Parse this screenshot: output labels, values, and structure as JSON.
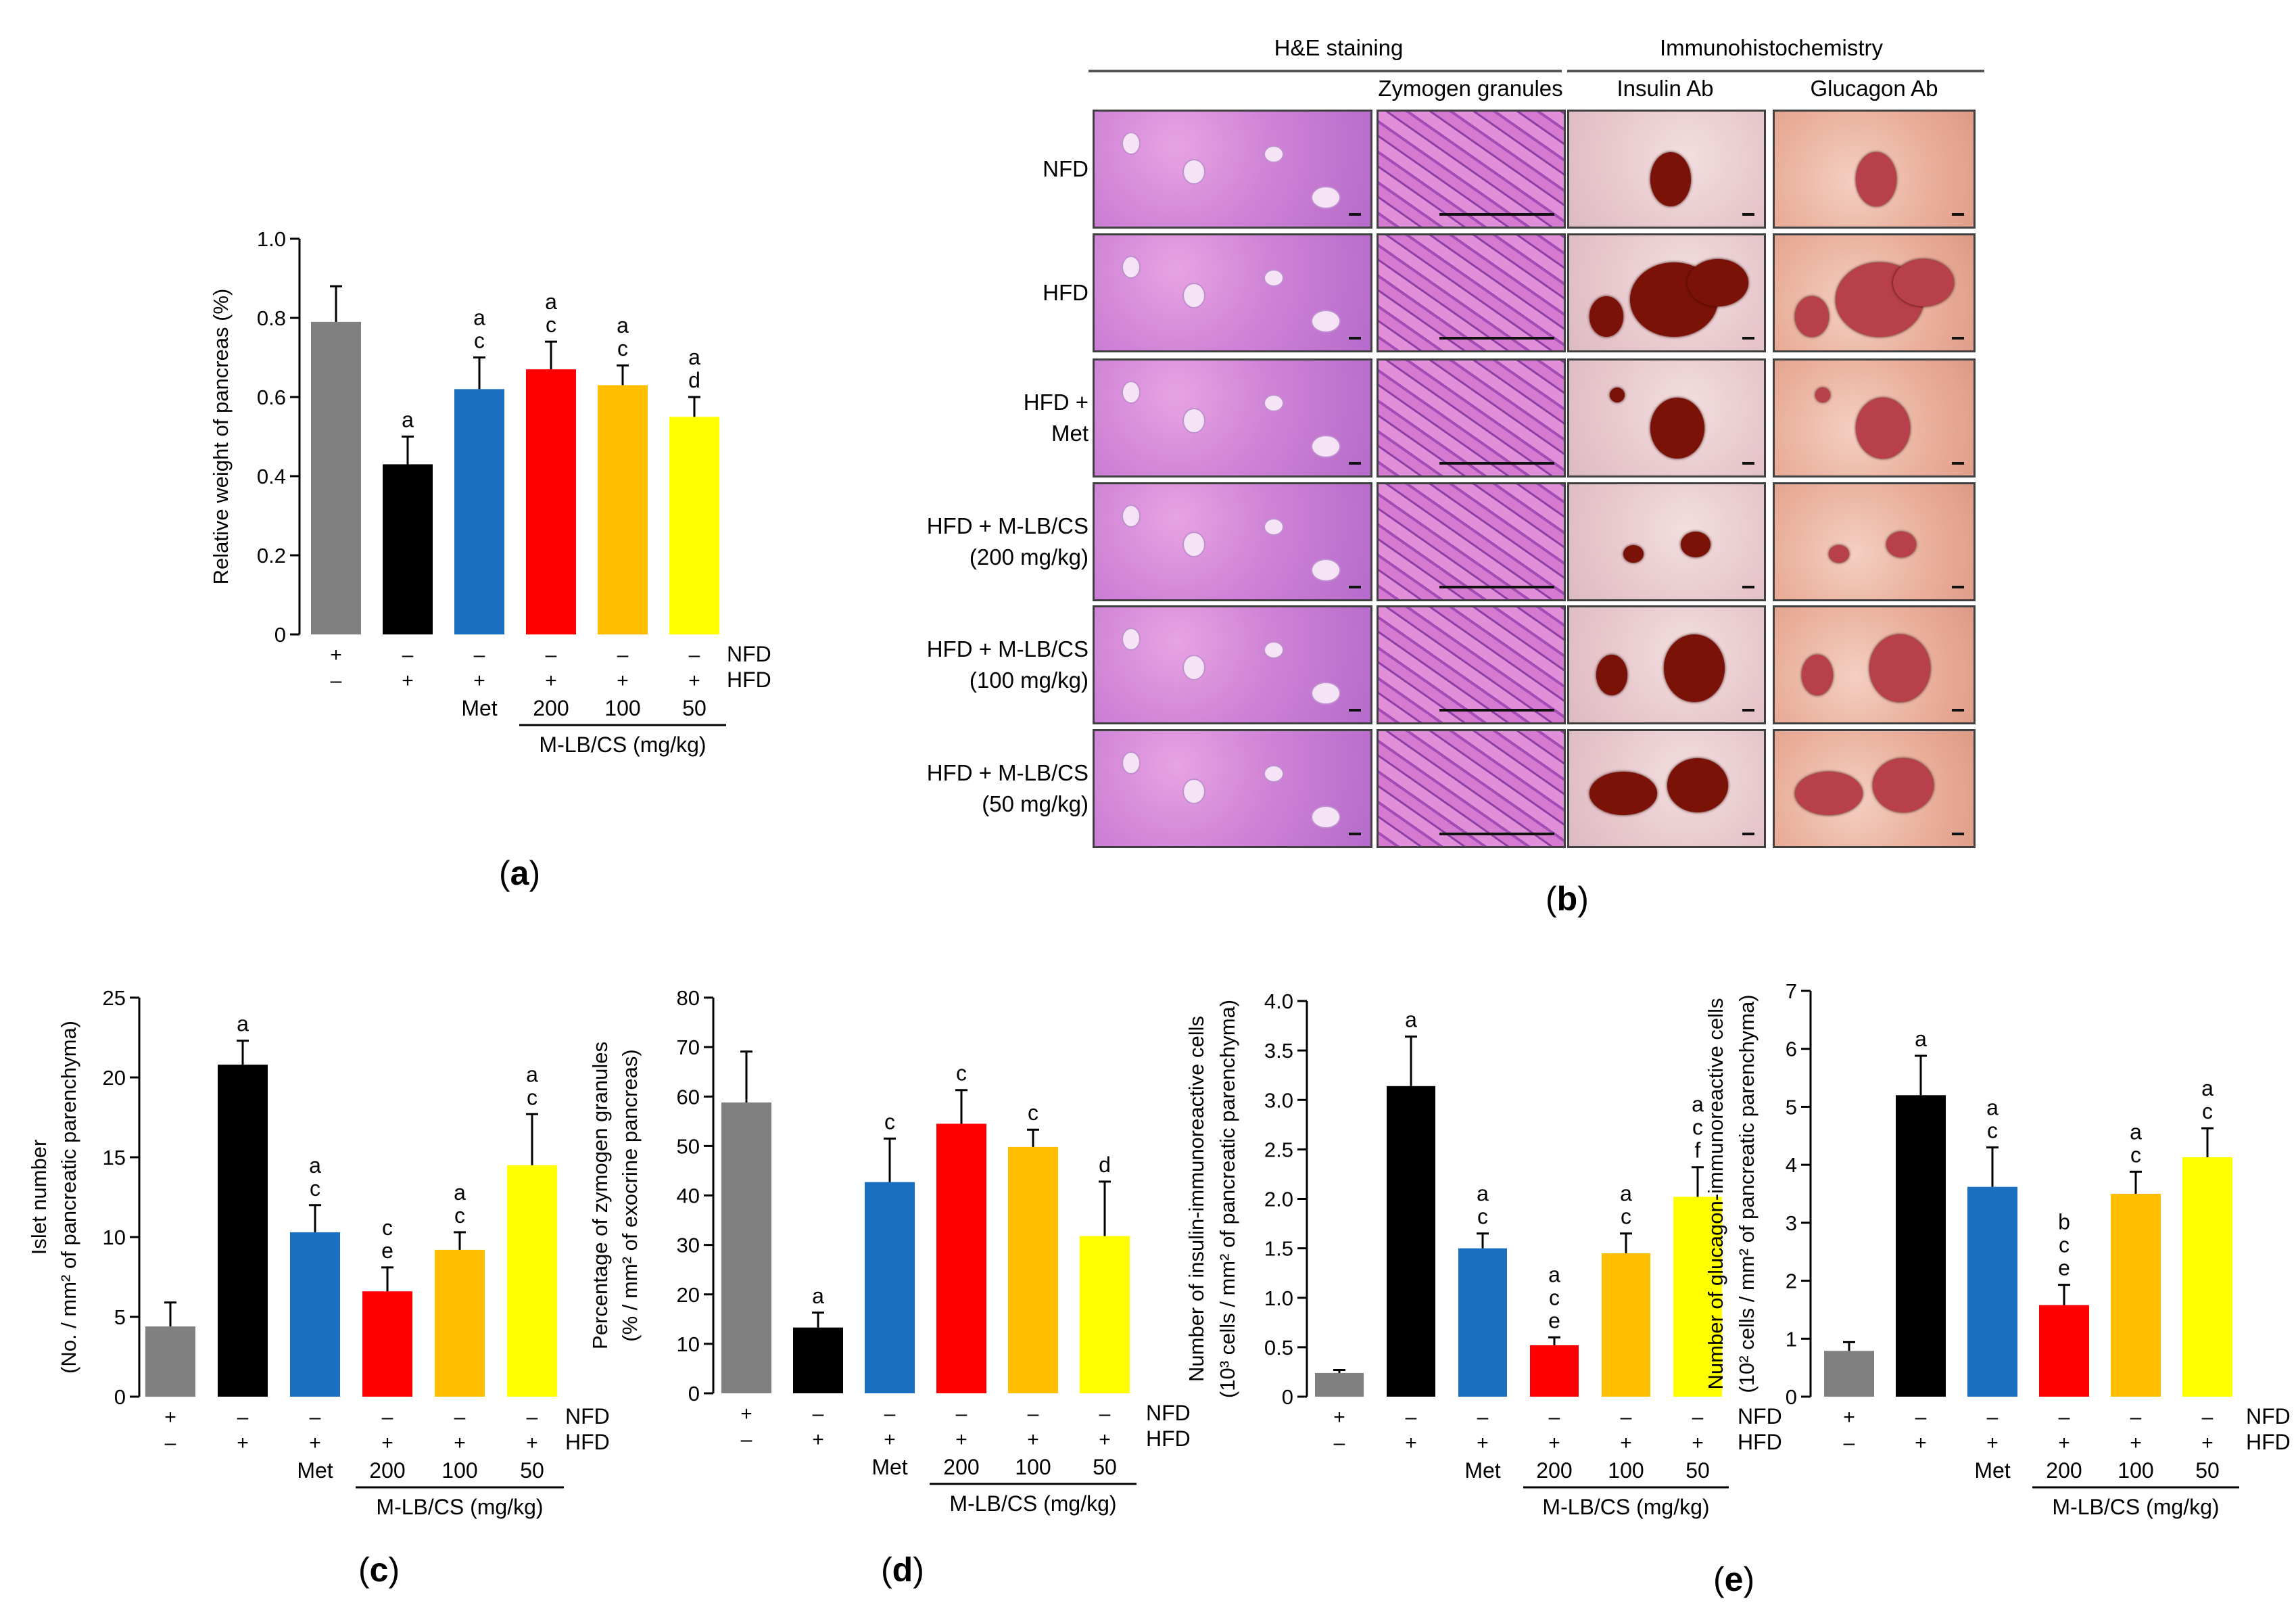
{
  "panel_labels": {
    "a": "(a)",
    "b": "(b)",
    "c": "(c)",
    "d": "(d)",
    "e": "(e)",
    "a_letter": "a",
    "b_letter": "b",
    "c_letter": "c",
    "d_letter": "d",
    "e_letter": "e"
  },
  "bar_colors": [
    "#808080",
    "#000000",
    "#1a6fc0",
    "#ff0000",
    "#ffbf00",
    "#ffff00"
  ],
  "treatment": {
    "nfd_label": "NFD",
    "hfd_label": "HFD",
    "nfd_row": [
      "+",
      "–",
      "–",
      "–",
      "–",
      "–"
    ],
    "hfd_row": [
      "–",
      "+",
      "+",
      "+",
      "+",
      "+"
    ],
    "dose_row": [
      "",
      "",
      "Met",
      "200",
      "100",
      "50"
    ],
    "group_label": "M-LB/CS (mg/kg)"
  },
  "chart_data": [
    {
      "id": "a",
      "type": "bar",
      "ylabel": "Relative weight of pancreas (%)",
      "ylim": [
        0,
        1.0
      ],
      "yticks": [
        "0",
        "0.2",
        "0.4",
        "0.6",
        "0.8",
        "1.0"
      ],
      "categories": [
        "NFD",
        "HFD",
        "HFD+Met",
        "HFD+M-LB/CS 200",
        "HFD+M-LB/CS 100",
        "HFD+M-LB/CS 50"
      ],
      "values": [
        0.79,
        0.43,
        0.62,
        0.67,
        0.63,
        0.55
      ],
      "errors": [
        0.09,
        0.07,
        0.08,
        0.07,
        0.05,
        0.05
      ],
      "sig": [
        [],
        [
          "a"
        ],
        [
          "a",
          "c"
        ],
        [
          "a",
          "c"
        ],
        [
          "a",
          "c"
        ],
        [
          "a",
          "d"
        ]
      ]
    },
    {
      "id": "c",
      "type": "bar",
      "ylabel": "Islet number",
      "ylabel2": "(No. / mm² of pancreatic parenchyma)",
      "ylim": [
        0,
        25
      ],
      "yticks": [
        "0",
        "5",
        "10",
        "15",
        "20",
        "25"
      ],
      "categories": [
        "NFD",
        "HFD",
        "HFD+Met",
        "HFD+M-LB/CS 200",
        "HFD+M-LB/CS 100",
        "HFD+M-LB/CS 50"
      ],
      "values": [
        4.4,
        20.8,
        10.3,
        6.6,
        9.2,
        14.5
      ],
      "errors": [
        1.5,
        1.5,
        1.7,
        1.5,
        1.1,
        3.2
      ],
      "sig": [
        [],
        [
          "a"
        ],
        [
          "a",
          "c"
        ],
        [
          "c",
          "e"
        ],
        [
          "a",
          "c"
        ],
        [
          "a",
          "c"
        ]
      ]
    },
    {
      "id": "d",
      "type": "bar",
      "ylabel": "Percentage of zymogen granules",
      "ylabel2": "(% / mm² of exocrine pancreas)",
      "ylim": [
        0,
        80
      ],
      "yticks": [
        "0",
        "10",
        "20",
        "30",
        "40",
        "50",
        "60",
        "70",
        "80"
      ],
      "categories": [
        "NFD",
        "HFD",
        "HFD+Met",
        "HFD+M-LB/CS 200",
        "HFD+M-LB/CS 100",
        "HFD+M-LB/CS 50"
      ],
      "values": [
        58.8,
        13.3,
        42.7,
        54.5,
        49.8,
        31.8
      ],
      "errors": [
        10.3,
        3.0,
        8.8,
        6.8,
        3.5,
        11.0
      ],
      "sig": [
        [],
        [
          "a"
        ],
        [
          "c"
        ],
        [
          "c"
        ],
        [
          "c"
        ],
        [
          "d"
        ]
      ]
    },
    {
      "id": "e1",
      "type": "bar",
      "ylabel": "Number of insulin-immunoreactive cells",
      "ylabel2": "(10³ cells / mm² of pancreatic parenchyma)",
      "ylim": [
        0,
        4.0
      ],
      "yticks": [
        "0",
        "0.5",
        "1.0",
        "1.5",
        "2.0",
        "2.5",
        "3.0",
        "3.5",
        "4.0"
      ],
      "categories": [
        "NFD",
        "HFD",
        "HFD+Met",
        "HFD+M-LB/CS 200",
        "HFD+M-LB/CS 100",
        "HFD+M-LB/CS 50"
      ],
      "values": [
        0.24,
        3.14,
        1.5,
        0.52,
        1.45,
        2.02
      ],
      "errors": [
        0.03,
        0.5,
        0.15,
        0.08,
        0.2,
        0.3
      ],
      "sig": [
        [],
        [
          "a"
        ],
        [
          "a",
          "c"
        ],
        [
          "a",
          "c",
          "e"
        ],
        [
          "a",
          "c"
        ],
        [
          "a",
          "c",
          "f"
        ]
      ]
    },
    {
      "id": "e2",
      "type": "bar",
      "ylabel": "Number of glucagon-immunoreactive cells",
      "ylabel2": "(10² cells / mm² of pancreatic parenchyma)",
      "ylim": [
        0,
        7
      ],
      "yticks": [
        "0",
        "1",
        "2",
        "3",
        "4",
        "5",
        "6",
        "7"
      ],
      "categories": [
        "NFD",
        "HFD",
        "HFD+Met",
        "HFD+M-LB/CS 200",
        "HFD+M-LB/CS 100",
        "HFD+M-LB/CS 50"
      ],
      "values": [
        0.79,
        5.2,
        3.62,
        1.58,
        3.5,
        4.13
      ],
      "errors": [
        0.15,
        0.68,
        0.68,
        0.35,
        0.38,
        0.5
      ],
      "sig": [
        [],
        [
          "a"
        ],
        [
          "a",
          "c"
        ],
        [
          "b",
          "c",
          "e"
        ],
        [
          "a",
          "c"
        ],
        [
          "a",
          "c"
        ]
      ]
    }
  ],
  "histology": {
    "section_he": "H&E staining",
    "section_ihc": "Immunohistochemistry",
    "col_zymogen": "Zymogen granules",
    "col_insulin": "Insulin Ab",
    "col_glucagon": "Glucagon Ab",
    "rows": [
      [
        "NFD"
      ],
      [
        "HFD"
      ],
      [
        "HFD +",
        "Met"
      ],
      [
        "HFD + M-LB/CS",
        "(200 mg/kg)"
      ],
      [
        "HFD + M-LB/CS",
        "(100 mg/kg)"
      ],
      [
        "HFD + M-LB/CS",
        "(50 mg/kg)"
      ]
    ]
  }
}
